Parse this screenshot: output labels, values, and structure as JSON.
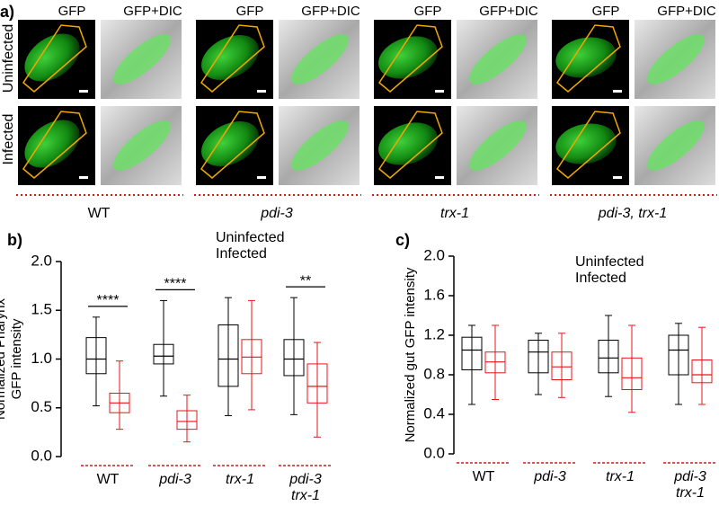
{
  "panel_a": {
    "label": "a)",
    "columns": [
      "GFP",
      "GFP+DIC"
    ],
    "rows": [
      "Uninfected",
      "Infected"
    ],
    "strains": [
      "WT",
      "pdi-3",
      "trx-1",
      "pdi-3, trx-1"
    ]
  },
  "chart_data": [
    {
      "type": "box",
      "panel_label": "b)",
      "ylabel": [
        "Normalized Pharynx",
        "GFP intensity"
      ],
      "categories": [
        "WT",
        "pdi-3",
        "trx-1",
        [
          "pdi-3",
          "trx-1"
        ]
      ],
      "significance": [
        "****",
        "****",
        null,
        "**"
      ],
      "ylim": [
        0,
        2.0
      ],
      "yticks": [
        {
          "value": 0,
          "label": "0.0"
        },
        {
          "value": 0.5,
          "label": "0.5"
        },
        {
          "value": 1,
          "label": "1.0"
        },
        {
          "value": 1.5,
          "label": "1.5"
        },
        {
          "value": 2,
          "label": "2.0"
        }
      ],
      "series": [
        {
          "name": "Uninfected",
          "color": "#000000",
          "boxes": [
            {
              "min": 0.52,
              "q1": 0.85,
              "median": 1.0,
              "q3": 1.22,
              "max": 1.43
            },
            {
              "min": 0.62,
              "q1": 0.95,
              "median": 1.03,
              "q3": 1.15,
              "max": 1.6
            },
            {
              "min": 0.42,
              "q1": 0.72,
              "median": 1.0,
              "q3": 1.35,
              "max": 1.63
            },
            {
              "min": 0.43,
              "q1": 0.83,
              "median": 1.0,
              "q3": 1.2,
              "max": 1.63
            }
          ]
        },
        {
          "name": "Infected",
          "color": "#e8141c",
          "boxes": [
            {
              "min": 0.28,
              "q1": 0.45,
              "median": 0.55,
              "q3": 0.65,
              "max": 0.98
            },
            {
              "min": 0.15,
              "q1": 0.28,
              "median": 0.36,
              "q3": 0.47,
              "max": 0.63
            },
            {
              "min": 0.48,
              "q1": 0.85,
              "median": 1.02,
              "q3": 1.2,
              "max": 1.6
            },
            {
              "min": 0.2,
              "q1": 0.55,
              "median": 0.72,
              "q3": 0.95,
              "max": 1.17
            }
          ]
        }
      ]
    },
    {
      "type": "box",
      "panel_label": "c)",
      "ylabel": [
        "Normalized gut GFP intensity"
      ],
      "categories": [
        "WT",
        "pdi-3",
        "trx-1",
        [
          "pdi-3",
          "trx-1"
        ]
      ],
      "ylim": [
        0,
        2.0
      ],
      "yticks": [
        {
          "value": 0,
          "label": "0.0"
        },
        {
          "value": 0.4,
          "label": "0.4"
        },
        {
          "value": 0.8,
          "label": "0.8"
        },
        {
          "value": 1.2,
          "label": "1.2"
        },
        {
          "value": 1.6,
          "label": "1.6"
        },
        {
          "value": 2,
          "label": "2.0"
        }
      ],
      "series": [
        {
          "name": "Uninfected",
          "color": "#000000",
          "boxes": [
            {
              "min": 0.5,
              "q1": 0.85,
              "median": 1.05,
              "q3": 1.18,
              "max": 1.3
            },
            {
              "min": 0.6,
              "q1": 0.82,
              "median": 1.03,
              "q3": 1.15,
              "max": 1.22
            },
            {
              "min": 0.58,
              "q1": 0.82,
              "median": 0.97,
              "q3": 1.15,
              "max": 1.4
            },
            {
              "min": 0.5,
              "q1": 0.8,
              "median": 1.05,
              "q3": 1.2,
              "max": 1.32
            }
          ]
        },
        {
          "name": "Infected",
          "color": "#e8141c",
          "boxes": [
            {
              "min": 0.55,
              "q1": 0.82,
              "median": 0.93,
              "q3": 1.03,
              "max": 1.3
            },
            {
              "min": 0.57,
              "q1": 0.75,
              "median": 0.88,
              "q3": 1.03,
              "max": 1.22
            },
            {
              "min": 0.42,
              "q1": 0.65,
              "median": 0.77,
              "q3": 0.97,
              "max": 1.3
            },
            {
              "min": 0.5,
              "q1": 0.72,
              "median": 0.8,
              "q3": 0.95,
              "max": 1.28
            }
          ]
        }
      ]
    }
  ]
}
